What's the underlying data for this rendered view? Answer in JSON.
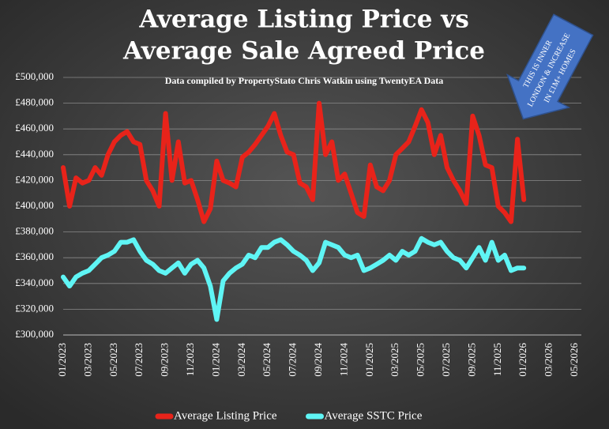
{
  "chart_data": {
    "type": "line",
    "title": "Average Listing Price vs",
    "title2": "Average Sale Agreed Price",
    "subtitle": "Data compiled by PropertyStato Chris Watkin using TwentyEA Data",
    "annotation": [
      "THIS IS INNER",
      "LONDON & INCREASE",
      "IN £1M+ HOMES"
    ],
    "categories": [
      "01/2023",
      null,
      null,
      null,
      "03/2023",
      null,
      null,
      null,
      "05/2023",
      null,
      null,
      null,
      "07/2023",
      null,
      null,
      null,
      "09/2023",
      null,
      null,
      null,
      "11/2023",
      null,
      null,
      null,
      "01/2024",
      null,
      null,
      null,
      "03/2024",
      null,
      null,
      null,
      "05/2024",
      null,
      null,
      null,
      "07/2024",
      null,
      null,
      null,
      "09/2024",
      null,
      null,
      null,
      "11/2024",
      null,
      null,
      null,
      "01/2025",
      null,
      null,
      null,
      "03/2025",
      null,
      null,
      null,
      "05/2025",
      null,
      null,
      null,
      "07/2025",
      null,
      null,
      null,
      "09/2025",
      null,
      null,
      null,
      "11/2025",
      null,
      null,
      null,
      "01/2026",
      null,
      null,
      null,
      "03/2026",
      null,
      null,
      null,
      "05/2026"
    ],
    "series": [
      {
        "name": "Average Listing Price",
        "color": "#e8231a",
        "values": [
          430000,
          400000,
          422000,
          418000,
          420000,
          430000,
          424000,
          440000,
          450000,
          455000,
          458000,
          450000,
          448000,
          420000,
          412000,
          400000,
          472000,
          420000,
          450000,
          418000,
          420000,
          405000,
          388000,
          398000,
          435000,
          420000,
          418000,
          415000,
          438000,
          442000,
          448000,
          455000,
          462000,
          472000,
          455000,
          442000,
          440000,
          418000,
          415000,
          405000,
          480000,
          440000,
          450000,
          420000,
          425000,
          410000,
          395000,
          392000,
          432000,
          415000,
          412000,
          420000,
          440000,
          445000,
          450000,
          462000,
          475000,
          465000,
          440000,
          455000,
          430000,
          420000,
          412000,
          402000,
          470000,
          455000,
          432000,
          430000,
          400000,
          395000,
          388000,
          452000,
          405000,
          null,
          null,
          null,
          null,
          null,
          null,
          null,
          null
        ]
      },
      {
        "name": "Average SSTC Price",
        "color": "#5ff5f5",
        "values": [
          345000,
          338000,
          345000,
          348000,
          350000,
          355000,
          360000,
          362000,
          365000,
          372000,
          372000,
          374000,
          365000,
          358000,
          355000,
          350000,
          348000,
          352000,
          356000,
          348000,
          355000,
          358000,
          352000,
          338000,
          312000,
          342000,
          348000,
          352000,
          355000,
          362000,
          360000,
          368000,
          368000,
          372000,
          374000,
          370000,
          365000,
          362000,
          358000,
          350000,
          356000,
          372000,
          370000,
          368000,
          362000,
          360000,
          362000,
          350000,
          352000,
          355000,
          358000,
          362000,
          358000,
          365000,
          362000,
          365000,
          375000,
          372000,
          370000,
          372000,
          365000,
          360000,
          358000,
          352000,
          360000,
          368000,
          358000,
          372000,
          358000,
          362000,
          350000,
          352000,
          352000,
          null,
          null,
          null,
          null,
          null,
          null,
          null,
          null
        ]
      }
    ],
    "ylim": [
      300000,
      500000
    ],
    "yticks": [
      {
        "value": 300000,
        "label": "£300,000"
      },
      {
        "value": 320000,
        "label": "£320,000"
      },
      {
        "value": 340000,
        "label": "£340,000"
      },
      {
        "value": 360000,
        "label": "£360,000"
      },
      {
        "value": 380000,
        "label": "£380,000"
      },
      {
        "value": 400000,
        "label": "£400,000"
      },
      {
        "value": 420000,
        "label": "£420,000"
      },
      {
        "value": 440000,
        "label": "£440,000"
      },
      {
        "value": 460000,
        "label": "£460,000"
      },
      {
        "value": 480000,
        "label": "£480,000"
      },
      {
        "value": 500000,
        "label": "£500,000"
      }
    ],
    "grid": true,
    "legend": "bottom"
  }
}
